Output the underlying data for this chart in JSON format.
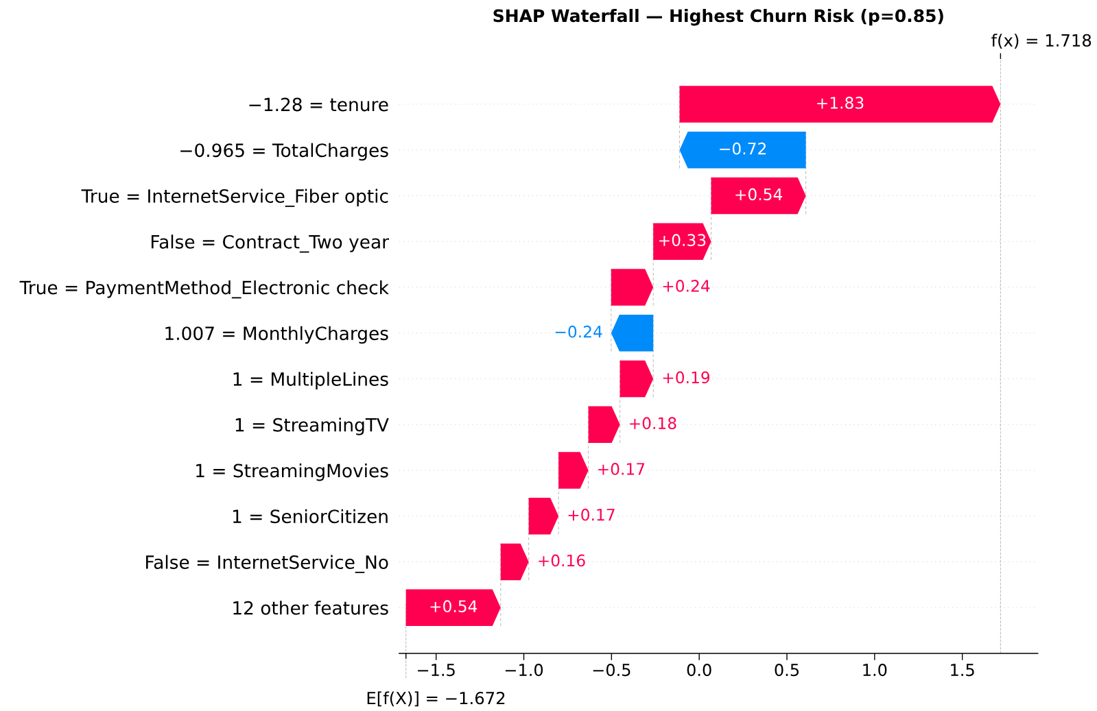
{
  "chart_data": {
    "type": "bar",
    "orientation": "horizontal",
    "title": "SHAP Waterfall — Highest Churn Risk (p=0.85)",
    "categories": [
      "−1.28 = tenure",
      "−0.965 = TotalCharges",
      "True = InternetService_Fiber optic",
      "False = Contract_Two year",
      "True = PaymentMethod_Electronic check",
      "1.007 = MonthlyCharges",
      "1 = MultipleLines",
      "1 = StreamingTV",
      "1 = StreamingMovies",
      "1 = SeniorCitizen",
      "False = InternetService_No",
      "12 other features"
    ],
    "values": [
      1.83,
      -0.72,
      0.54,
      0.33,
      0.24,
      -0.24,
      0.19,
      0.18,
      0.17,
      0.17,
      0.16,
      0.54
    ],
    "base": [
      -0.112,
      0.608,
      0.068,
      -0.262,
      -0.502,
      -0.262,
      -0.452,
      -0.632,
      -0.802,
      -0.972,
      -1.132,
      -1.672
    ],
    "colors": [
      "#ff0051",
      "#008bfb",
      "#ff0051",
      "#ff0051",
      "#ff0051",
      "#008bfb",
      "#ff0051",
      "#ff0051",
      "#ff0051",
      "#ff0051",
      "#ff0051",
      "#ff0051"
    ],
    "value_labels": [
      "+1.83",
      "−0.72",
      "+0.54",
      "+0.33",
      "+0.24",
      "−0.24",
      "+0.19",
      "+0.18",
      "+0.17",
      "+0.17",
      "+0.16",
      "+0.54"
    ],
    "xlim": [
      -1.71,
      1.93
    ],
    "xticks": [
      {
        "value": -1.5,
        "label": "−1.5"
      },
      {
        "value": -1.0,
        "label": "−1.0"
      },
      {
        "value": -0.5,
        "label": "−0.5"
      },
      {
        "value": 0,
        "label": "0.0"
      },
      0.5,
      {
        "value": 1.0,
        "label": "1.0"
      },
      1.5
    ],
    "ref_lines": [
      {
        "axis": "x",
        "value": -1.672,
        "label": "E[f(X)] = −1.672",
        "color": "#bbbbbb",
        "line_style": "dashed"
      },
      {
        "axis": "x",
        "value": 1.718,
        "label": "f(x) = 1.718",
        "color": "#bbbbbb",
        "line_style": "dashed"
      }
    ],
    "grid": "y"
  }
}
